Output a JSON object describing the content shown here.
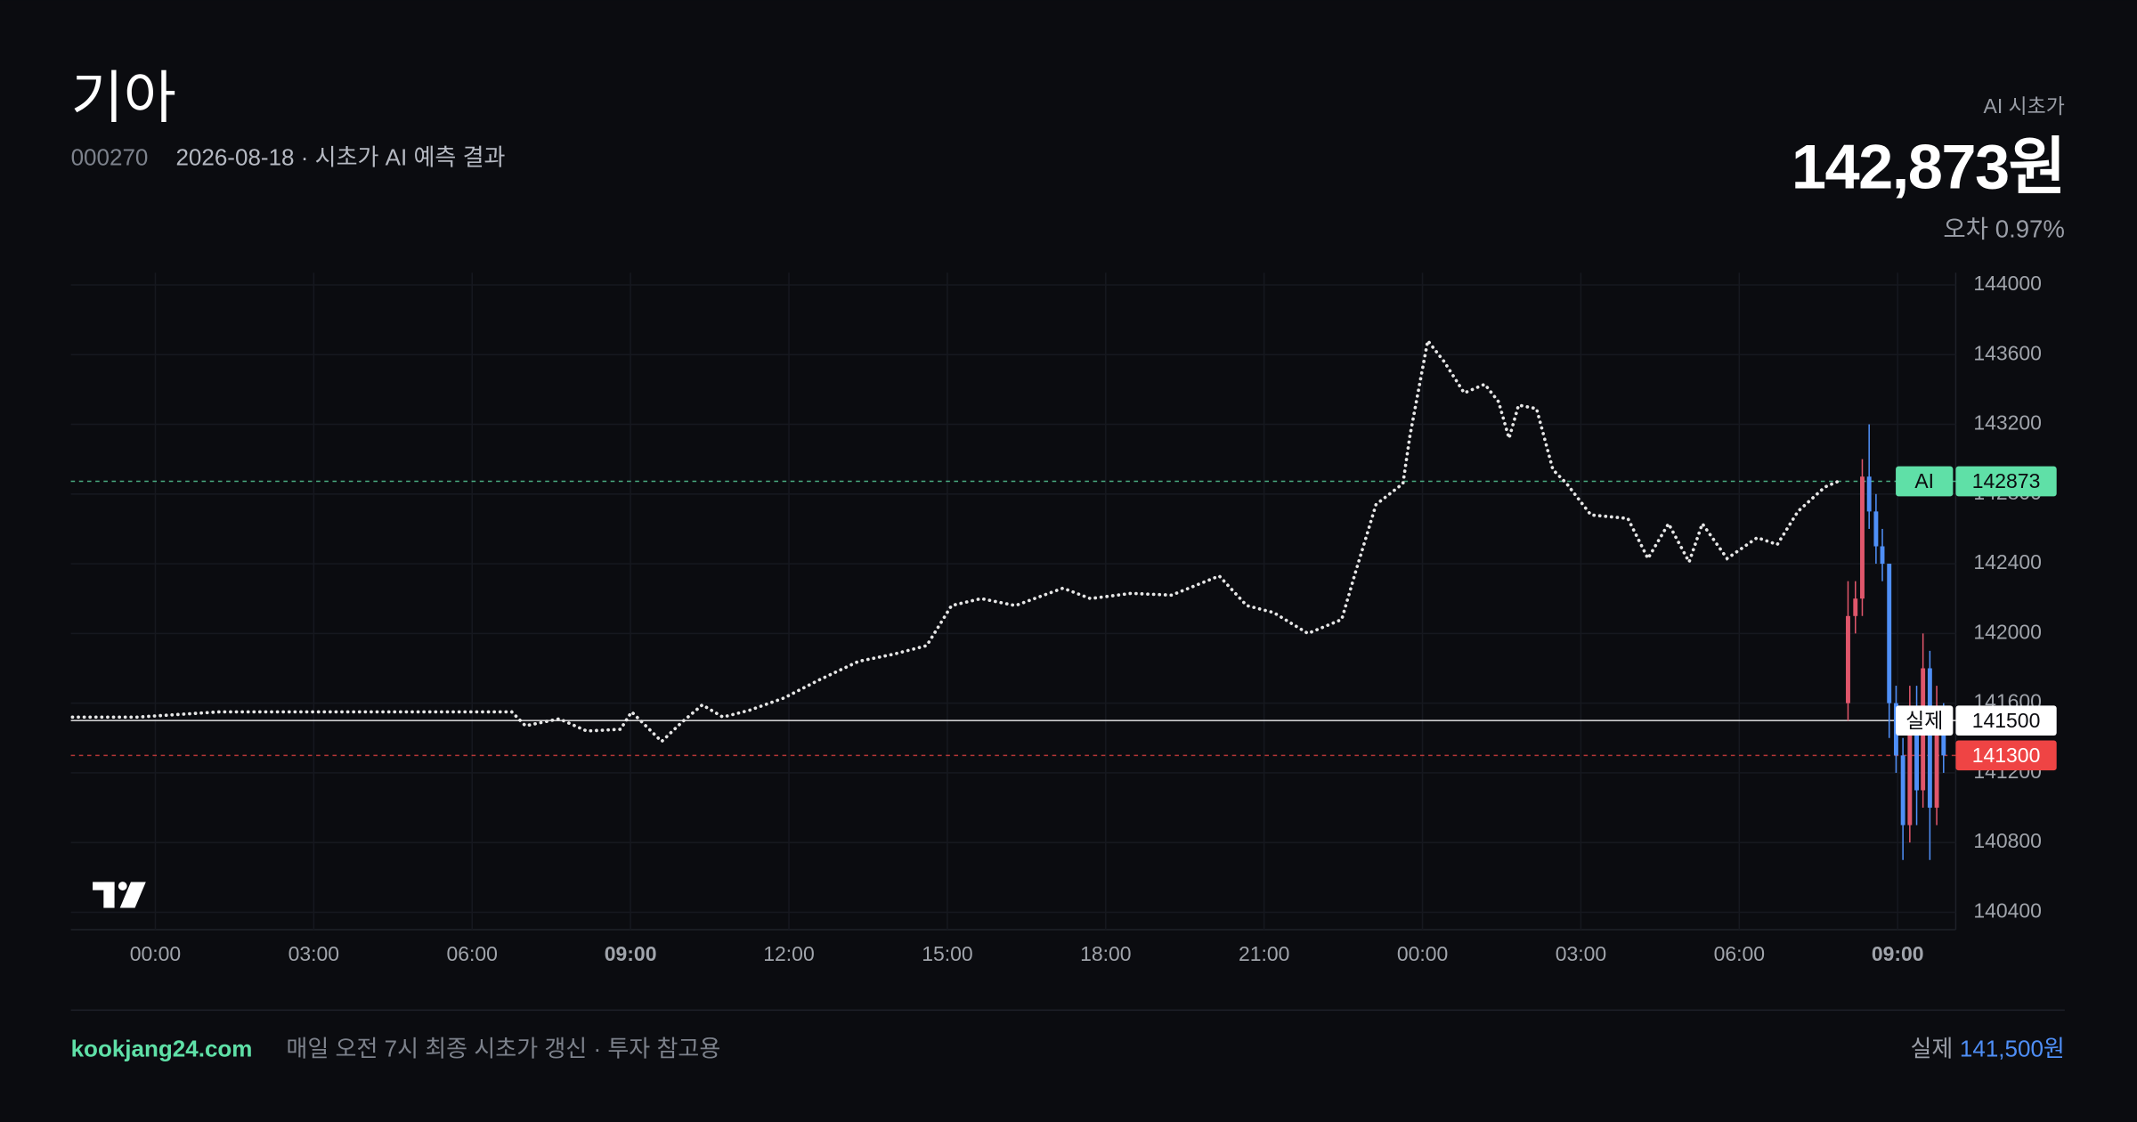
{
  "header": {
    "title": "기아",
    "code": "000270",
    "subtitle": "2026-08-18 · 시초가 AI 예측 결과",
    "forecast_label": "AI 시초가",
    "forecast_value": "142,873원",
    "error": "오차 0.97%"
  },
  "footer": {
    "site": "kookjang24.com",
    "note": "매일 오전 7시 최종 시초가 갱신 · 투자 참고용",
    "actual_label": "실제",
    "actual_value": "141,500원"
  },
  "chart_data": {
    "type": "line",
    "x": [
      -1.57,
      -0.34,
      1.21,
      3.53,
      5.34,
      6.75,
      7.01,
      7.65,
      8.17,
      8.81,
      9.02,
      9.59,
      9.97,
      10.36,
      10.75,
      11.26,
      11.91,
      12.55,
      13.32,
      13.97,
      14.61,
      15.08,
      15.64,
      16.29,
      17.19,
      17.71,
      18.48,
      19.25,
      20.15,
      20.67,
      21.18,
      21.83,
      22.47,
      22.73,
      23.12,
      23.63,
      23.76,
      24.1,
      24.41,
      24.79,
      25.18,
      25.44,
      25.64,
      25.82,
      26.16,
      26.47,
      26.73,
      27.19,
      27.89,
      28.27,
      28.66,
      29.05,
      29.3,
      29.77,
      30.34,
      30.72,
      31.11,
      31.62,
      31.93
    ],
    "series": [
      {
        "color": "#e6e6e6",
        "values": [
          141520,
          141520,
          141550,
          141550,
          141550,
          141550,
          141470,
          141510,
          141440,
          141450,
          141550,
          141380,
          141490,
          141590,
          141520,
          141560,
          141630,
          141730,
          141840,
          141880,
          141930,
          142160,
          142200,
          142160,
          142260,
          142200,
          142230,
          142220,
          142330,
          142160,
          142120,
          142000,
          142080,
          142350,
          142740,
          142860,
          143130,
          143680,
          143560,
          143380,
          143430,
          143330,
          143120,
          143310,
          143290,
          142940,
          142860,
          142680,
          142660,
          142430,
          142630,
          142410,
          142630,
          142430,
          142550,
          142510,
          142700,
          142840,
          142880
        ]
      }
    ],
    "candles": {
      "up_color": "#e0566b",
      "down_color": "#4f8ff7",
      "x": [
        32.06,
        32.2,
        32.33,
        32.46,
        32.59,
        32.71,
        32.84,
        32.97,
        33.1,
        33.23,
        33.36,
        33.48,
        33.61,
        33.74,
        33.87
      ],
      "open": [
        141600,
        142100,
        142200,
        142900,
        142700,
        142500,
        142400,
        141600,
        141300,
        140900,
        141500,
        141100,
        141800,
        141000,
        141500
      ],
      "high": [
        142300,
        142300,
        143000,
        143200,
        142800,
        142600,
        142400,
        141700,
        141400,
        141700,
        141700,
        142000,
        141900,
        141700,
        141600
      ],
      "low": [
        141500,
        142000,
        142100,
        142600,
        142400,
        142300,
        141400,
        141200,
        140700,
        140800,
        140900,
        141000,
        140700,
        140900,
        141200
      ],
      "close": [
        142100,
        142200,
        142900,
        142700,
        142500,
        142400,
        141600,
        141300,
        140900,
        141500,
        141100,
        141800,
        141000,
        141500,
        141300
      ]
    },
    "lines": [
      {
        "label": "AI",
        "value": 142873,
        "color": "#5fe0a7",
        "dash": true
      },
      {
        "label": "실제",
        "value": 141500,
        "color": "#ffffff",
        "dash": false
      },
      {
        "value": 141300,
        "color": "#ef4444",
        "dash": true
      }
    ],
    "xlim": [
      -1.6,
      34.1
    ],
    "ylim": [
      140300,
      144070
    ],
    "xticks": [
      {
        "value": 0,
        "label": "00:00"
      },
      {
        "value": 3,
        "label": "03:00"
      },
      {
        "value": 6,
        "label": "06:00"
      },
      {
        "value": 9,
        "label": "09:00",
        "bold": true
      },
      {
        "value": 12,
        "label": "12:00"
      },
      {
        "value": 15,
        "label": "15:00"
      },
      {
        "value": 18,
        "label": "18:00"
      },
      {
        "value": 21,
        "label": "21:00"
      },
      {
        "value": 24,
        "label": "00:00"
      },
      {
        "value": 27,
        "label": "03:00"
      },
      {
        "value": 30,
        "label": "06:00"
      },
      {
        "value": 33,
        "label": "09:00",
        "bold": true
      }
    ],
    "yticks": [
      140400,
      140800,
      141200,
      141600,
      142000,
      142400,
      142800,
      143200,
      143600,
      144000
    ],
    "grid": true
  }
}
